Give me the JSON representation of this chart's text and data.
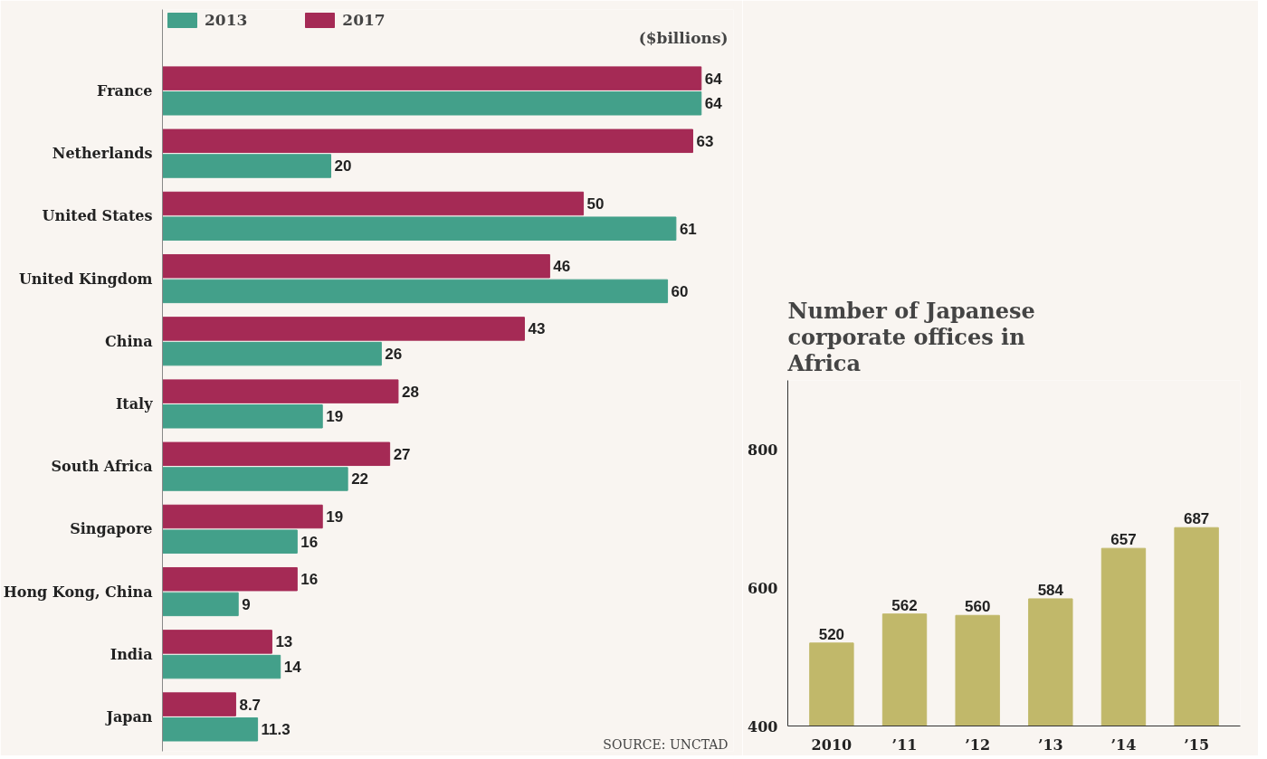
{
  "chart_data": [
    {
      "type": "bar",
      "orientation": "horizontal",
      "categories": [
        "France",
        "Netherlands",
        "United States",
        "United Kingdom",
        "China",
        "Italy",
        "South Africa",
        "Singapore",
        "Hong Kong, China",
        "India",
        "Japan"
      ],
      "series": [
        {
          "name": "2013",
          "color": "#43a08a",
          "values": [
            64,
            20,
            61,
            60,
            26,
            19,
            22,
            16,
            9,
            14,
            11.3
          ]
        },
        {
          "name": "2017",
          "color": "#a52a55",
          "values": [
            64,
            63,
            50,
            46,
            43,
            28,
            27,
            19,
            16,
            13,
            8.7
          ]
        }
      ],
      "data_labels": true,
      "legend": "top left",
      "grid": false,
      "annotations": [
        "($billions)",
        "SOURCE: UNCTAD"
      ]
    },
    {
      "type": "bar",
      "title": "Number of Japanese corporate offices in Africa",
      "categories": [
        "2010",
        "’11",
        "’12",
        "’13",
        "’14",
        "’15"
      ],
      "values": [
        520,
        562,
        560,
        584,
        657,
        687
      ],
      "color": "#c1b86a",
      "ylim": [
        400,
        900
      ],
      "yticks": [
        400,
        600,
        800
      ],
      "data_labels": true,
      "grid": false
    }
  ]
}
